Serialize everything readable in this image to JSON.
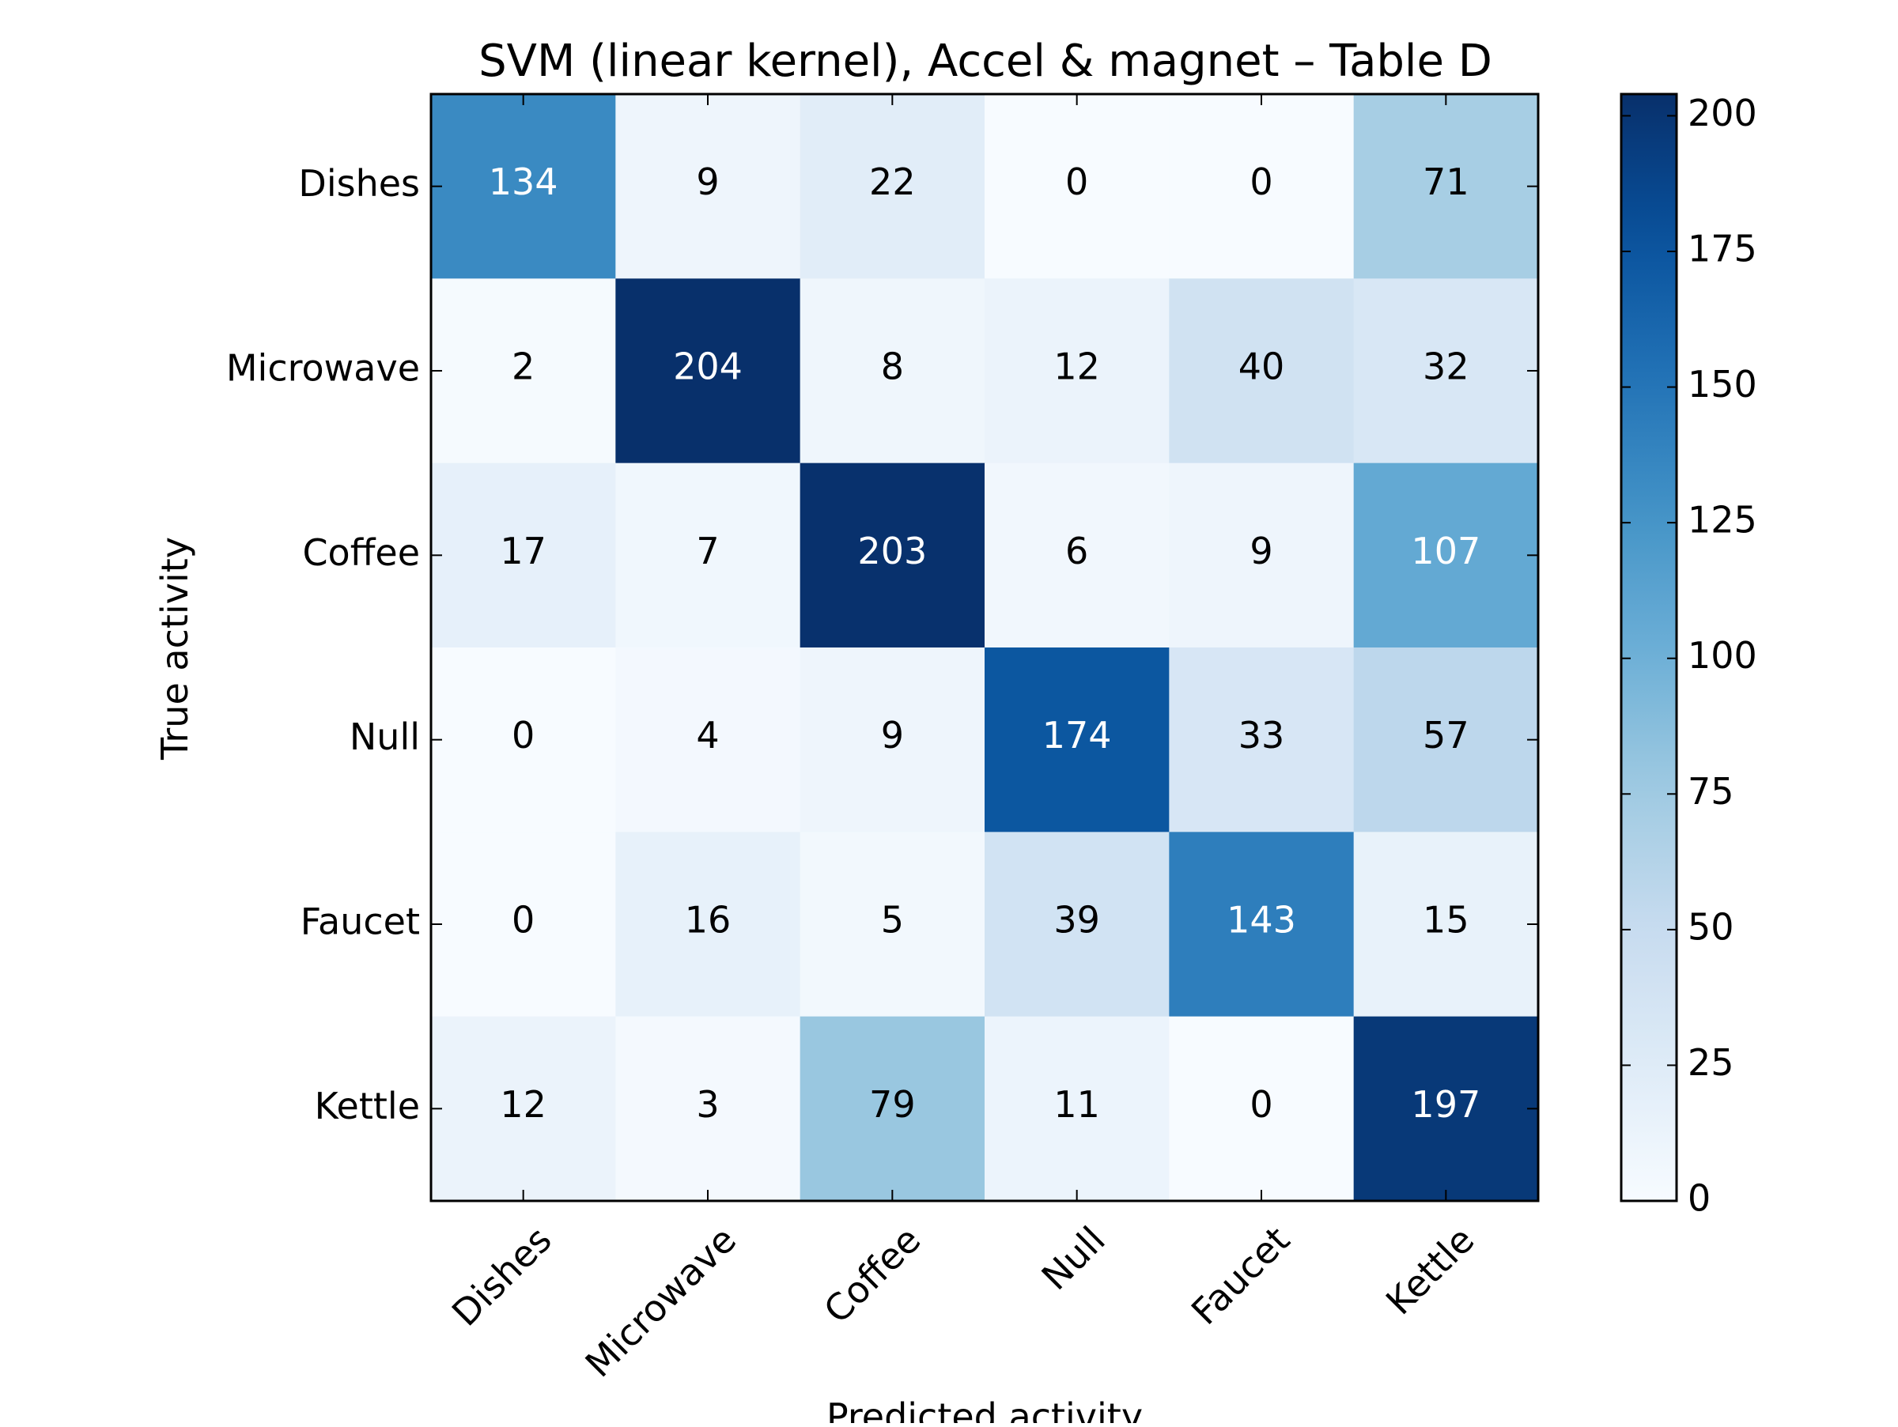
{
  "chart_data": {
    "type": "heatmap",
    "title": "SVM (linear kernel), Accel & magnet – Table D",
    "xlabel": "Predicted activity",
    "ylabel": "True activity",
    "x_categories": [
      "Dishes",
      "Microwave",
      "Coffee",
      "Null",
      "Faucet",
      "Kettle"
    ],
    "y_categories": [
      "Dishes",
      "Microwave",
      "Coffee",
      "Null",
      "Faucet",
      "Kettle"
    ],
    "values": [
      [
        134,
        9,
        22,
        0,
        0,
        71
      ],
      [
        2,
        204,
        8,
        12,
        40,
        32
      ],
      [
        17,
        7,
        203,
        6,
        9,
        107
      ],
      [
        0,
        4,
        9,
        174,
        33,
        57
      ],
      [
        0,
        16,
        5,
        39,
        143,
        15
      ],
      [
        12,
        3,
        79,
        11,
        0,
        197
      ]
    ],
    "colormap": "Blues",
    "color_range": [
      0,
      204
    ],
    "colorbar_ticks": [
      0,
      25,
      50,
      75,
      100,
      125,
      150,
      175,
      200
    ],
    "text_color_light": "#ffffff",
    "text_color_dark": "#000000",
    "grid": false,
    "legend": "colorbar-right"
  }
}
